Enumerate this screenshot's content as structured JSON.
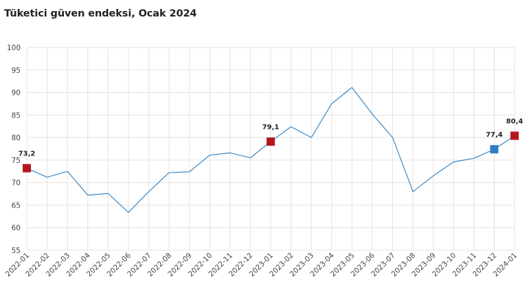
{
  "title": "Tüketici güven endeksi, Ocak 2024",
  "chart_data": {
    "type": "line",
    "title": "Tüketici güven endeksi, Ocak 2024",
    "xlabel": "",
    "ylabel": "",
    "ylim": [
      55,
      100
    ],
    "yticks": [
      55,
      60,
      65,
      70,
      75,
      80,
      85,
      90,
      95,
      100
    ],
    "grid": true,
    "categories": [
      "2022-01",
      "2022-02",
      "2022-03",
      "2022-04",
      "2022-05",
      "2022-06",
      "2022-07",
      "2022-08",
      "2022-09",
      "2022-10",
      "2022-11",
      "2022-12",
      "2023-01",
      "2023-02",
      "2023-03",
      "2023-04",
      "2023-05",
      "2023-06",
      "2023-07",
      "2023-08",
      "2023-09",
      "2023-10",
      "2023-11",
      "2023-12",
      "2024-01"
    ],
    "series": [
      {
        "values": [
          73.2,
          71.2,
          72.5,
          67.2,
          67.6,
          63.4,
          68.0,
          72.2,
          72.4,
          76.1,
          76.6,
          75.5,
          79.1,
          82.4,
          80.0,
          87.5,
          91.1,
          85.2,
          80.0,
          68.0,
          71.5,
          74.6,
          75.4,
          77.4,
          80.4
        ],
        "color": "#3a87c4"
      }
    ],
    "highlights": [
      {
        "index": 0,
        "label": "73,2",
        "color": "#b5161d"
      },
      {
        "index": 12,
        "label": "79,1",
        "color": "#b5161d"
      },
      {
        "index": 23,
        "label": "77,4",
        "color": "#2f7dc0"
      },
      {
        "index": 24,
        "label": "80,4",
        "color": "#b5161d"
      }
    ]
  }
}
